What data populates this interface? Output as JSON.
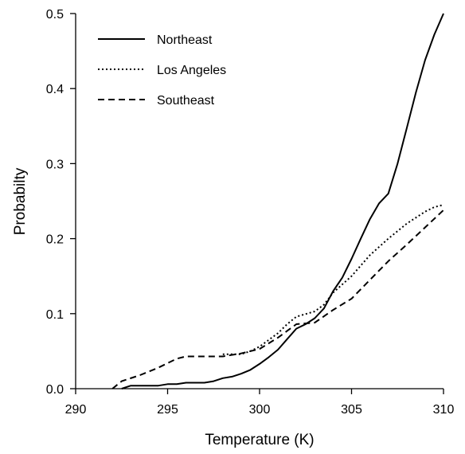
{
  "chart_data": {
    "type": "line",
    "title": "",
    "xlabel": "Temperature (K)",
    "ylabel": "Probabilty",
    "xlim": [
      290,
      310
    ],
    "ylim": [
      0,
      0.5
    ],
    "xticks": [
      290,
      295,
      300,
      305,
      310
    ],
    "xtick_labels": [
      "290",
      "295",
      "300",
      "305",
      "310"
    ],
    "yticks": [
      0,
      0.1,
      0.2,
      0.3,
      0.4,
      0.5
    ],
    "ytick_labels": [
      "0.0",
      "0.1",
      "0.2",
      "0.3",
      "0.4",
      "0.5"
    ],
    "grid": false,
    "legend_position": "top-left",
    "series": [
      {
        "name": "Northeast",
        "style": "solid",
        "color": "#000000",
        "x": [
          292.5,
          293.0,
          294.0,
          294.5,
          295.0,
          295.5,
          296.0,
          297.0,
          297.5,
          298.0,
          298.5,
          299.0,
          299.5,
          300.0,
          300.5,
          301.0,
          301.5,
          302.0,
          302.5,
          303.0,
          303.5,
          304.0,
          304.5,
          305.0,
          305.5,
          306.0,
          306.5,
          307.0,
          307.5,
          308.0,
          308.5,
          309.0,
          309.5,
          310.0
        ],
        "y": [
          0.0,
          0.004,
          0.004,
          0.004,
          0.006,
          0.006,
          0.008,
          0.008,
          0.01,
          0.014,
          0.016,
          0.02,
          0.025,
          0.033,
          0.042,
          0.052,
          0.066,
          0.08,
          0.086,
          0.094,
          0.107,
          0.13,
          0.148,
          0.173,
          0.2,
          0.226,
          0.247,
          0.26,
          0.3,
          0.347,
          0.395,
          0.438,
          0.472,
          0.5
        ]
      },
      {
        "name": "Los Angeles",
        "style": "dotted",
        "color": "#000000",
        "x": [
          298.0,
          299.0,
          299.5,
          300.0,
          301.0,
          301.5,
          302.0,
          303.0,
          303.5,
          304.0,
          305.0,
          306.0,
          307.0,
          308.0,
          309.0,
          309.5,
          310.0
        ],
        "y": [
          0.046,
          0.046,
          0.05,
          0.056,
          0.074,
          0.086,
          0.096,
          0.103,
          0.112,
          0.128,
          0.15,
          0.178,
          0.2,
          0.22,
          0.236,
          0.242,
          0.245
        ]
      },
      {
        "name": "Southeast",
        "style": "dashed",
        "color": "#000000",
        "x": [
          292.0,
          292.5,
          293.5,
          294.5,
          295.5,
          296.0,
          297.0,
          298.0,
          299.0,
          300.0,
          301.0,
          302.0,
          303.0,
          304.0,
          305.0,
          306.0,
          307.0,
          308.0,
          309.0,
          310.0
        ],
        "y": [
          0.0,
          0.01,
          0.018,
          0.028,
          0.04,
          0.043,
          0.043,
          0.043,
          0.047,
          0.053,
          0.068,
          0.086,
          0.088,
          0.105,
          0.12,
          0.145,
          0.17,
          0.192,
          0.215,
          0.238
        ]
      }
    ]
  }
}
